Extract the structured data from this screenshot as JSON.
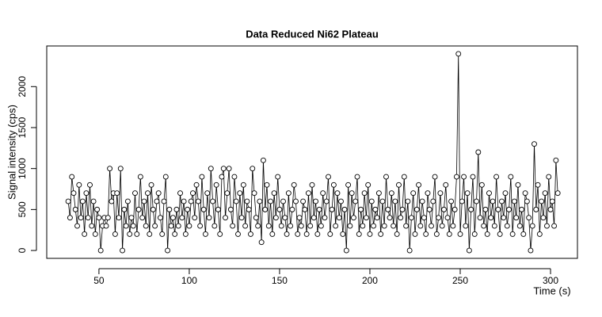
{
  "chart_data": {
    "type": "line",
    "markers": true,
    "title": "Data Reduced Ni62 Plateau",
    "xlabel": "Time (s)",
    "ylabel": "Signal intensity (cps)",
    "color": "#000000",
    "x": [
      33,
      34,
      35,
      36,
      37,
      38,
      39,
      40,
      41,
      42,
      43,
      44,
      45,
      46,
      47,
      48,
      49,
      50,
      51,
      52,
      53,
      54,
      55,
      56,
      57,
      58,
      59,
      60,
      61,
      62,
      63,
      64,
      65,
      66,
      67,
      68,
      69,
      70,
      71,
      72,
      73,
      74,
      75,
      76,
      77,
      78,
      79,
      80,
      81,
      82,
      83,
      84,
      85,
      86,
      87,
      88,
      89,
      90,
      91,
      92,
      93,
      94,
      95,
      96,
      97,
      98,
      99,
      100,
      101,
      102,
      103,
      104,
      105,
      106,
      107,
      108,
      109,
      110,
      111,
      112,
      113,
      114,
      115,
      116,
      117,
      118,
      119,
      120,
      121,
      122,
      123,
      124,
      125,
      126,
      127,
      128,
      129,
      130,
      131,
      132,
      133,
      134,
      135,
      136,
      137,
      138,
      139,
      140,
      141,
      142,
      143,
      144,
      145,
      146,
      147,
      148,
      149,
      150,
      151,
      152,
      153,
      154,
      155,
      156,
      157,
      158,
      159,
      160,
      161,
      162,
      163,
      164,
      165,
      166,
      167,
      168,
      169,
      170,
      171,
      172,
      173,
      174,
      175,
      176,
      177,
      178,
      179,
      180,
      181,
      182,
      183,
      184,
      185,
      186,
      187,
      188,
      189,
      190,
      191,
      192,
      193,
      194,
      195,
      196,
      197,
      198,
      199,
      200,
      201,
      202,
      203,
      204,
      205,
      206,
      207,
      208,
      209,
      210,
      211,
      212,
      213,
      214,
      215,
      216,
      217,
      218,
      219,
      220,
      221,
      222,
      223,
      224,
      225,
      226,
      227,
      228,
      229,
      230,
      231,
      232,
      233,
      234,
      235,
      236,
      237,
      238,
      239,
      240,
      241,
      242,
      243,
      244,
      245,
      246,
      247,
      248,
      249,
      250,
      251,
      252,
      253,
      254,
      255,
      256,
      257,
      258,
      259,
      260,
      261,
      262,
      263,
      264,
      265,
      266,
      267,
      268,
      269,
      270,
      271,
      272,
      273,
      274,
      275,
      276,
      277,
      278,
      279,
      280,
      281,
      282,
      283,
      284,
      285,
      286,
      287,
      288,
      289,
      290,
      291,
      292,
      293,
      294,
      295,
      296,
      297,
      298,
      299,
      300,
      301,
      302,
      303,
      304
    ],
    "values": [
      600,
      400,
      900,
      700,
      500,
      300,
      800,
      400,
      600,
      200,
      700,
      400,
      800,
      300,
      600,
      200,
      500,
      400,
      0,
      300,
      400,
      300,
      400,
      1000,
      600,
      700,
      200,
      700,
      400,
      1000,
      0,
      500,
      300,
      600,
      200,
      400,
      300,
      700,
      200,
      500,
      900,
      400,
      600,
      300,
      700,
      200,
      800,
      500,
      300,
      600,
      700,
      400,
      200,
      600,
      900,
      0,
      500,
      300,
      400,
      200,
      500,
      300,
      700,
      400,
      600,
      200,
      500,
      300,
      600,
      700,
      400,
      800,
      600,
      300,
      900,
      500,
      200,
      700,
      400,
      1000,
      600,
      300,
      800,
      500,
      200,
      900,
      1000,
      400,
      700,
      1000,
      500,
      300,
      900,
      600,
      200,
      700,
      400,
      800,
      300,
      600,
      500,
      200,
      1000,
      700,
      400,
      300,
      600,
      100,
      1100,
      500,
      800,
      300,
      600,
      200,
      700,
      400,
      900,
      500,
      300,
      600,
      400,
      200,
      700,
      300,
      500,
      800,
      600,
      200,
      400,
      300,
      600,
      500,
      200,
      700,
      300,
      800,
      400,
      600,
      200,
      500,
      300,
      700,
      400,
      600,
      900,
      200,
      500,
      800,
      300,
      700,
      400,
      600,
      200,
      500,
      0,
      800,
      300,
      700,
      400,
      600,
      900,
      200,
      500,
      300,
      700,
      400,
      800,
      200,
      600,
      300,
      500,
      400,
      700,
      200,
      600,
      300,
      900,
      500,
      400,
      700,
      300,
      600,
      200,
      800,
      400,
      500,
      900,
      300,
      600,
      0,
      400,
      700,
      200,
      500,
      800,
      300,
      600,
      400,
      200,
      700,
      500,
      300,
      600,
      900,
      200,
      400,
      700,
      300,
      500,
      800,
      400,
      200,
      600,
      300,
      500,
      900,
      2400,
      200,
      600,
      900,
      300,
      700,
      0,
      500,
      900,
      200,
      600,
      1200,
      400,
      800,
      300,
      500,
      200,
      700,
      400,
      600,
      300,
      900,
      500,
      200,
      600,
      400,
      700,
      300,
      500,
      900,
      200,
      600,
      400,
      800,
      300,
      500,
      200,
      700,
      600,
      400,
      0,
      300,
      1300,
      500,
      800,
      200,
      600,
      400,
      700,
      300,
      900,
      500,
      600,
      300,
      1100,
      700
    ],
    "xlim": [
      21.1,
      314.9
    ],
    "ylim": [
      -96,
      2496
    ],
    "xticks": [
      50,
      100,
      150,
      200,
      250,
      300
    ],
    "yticks": [
      0,
      500,
      1000,
      1500,
      2000
    ]
  }
}
